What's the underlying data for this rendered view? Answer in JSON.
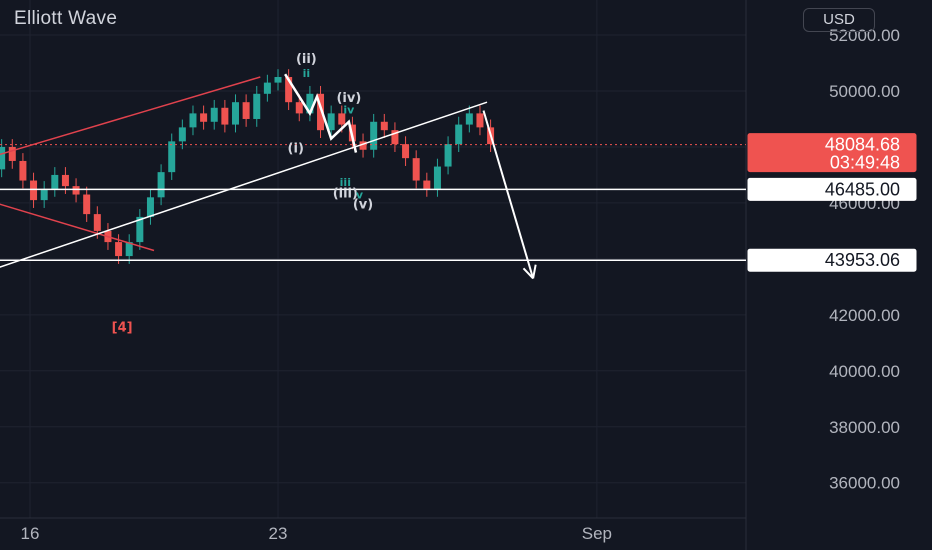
{
  "chart_title": "Elliott Wave",
  "currency": "USD",
  "chart_data": {
    "type": "candlestick",
    "y_axis": {
      "range": [
        35000,
        53500
      ],
      "ticks": [
        52000,
        50000,
        46000,
        42000,
        40000,
        38000,
        36000
      ],
      "tick_labels": [
        "52000.00",
        "50000.00",
        "46000.00",
        "42000.00",
        "40000.00",
        "38000.00",
        "36000.00"
      ]
    },
    "x_axis": {
      "ticks": [
        {
          "label": "16",
          "day": 16
        },
        {
          "label": "23",
          "day": 23
        },
        {
          "label": "Sep",
          "day": 32
        }
      ]
    },
    "current_price": {
      "value": 48084.68,
      "label": "48084.68",
      "countdown": "03:49:48"
    },
    "horizontal_levels": [
      {
        "value": 46485.0,
        "label": "46485.00"
      },
      {
        "value": 43953.06,
        "label": "43953.06"
      }
    ],
    "series": [
      {
        "name": "close",
        "x": [
          14.1,
          14.3,
          14.6,
          14.9,
          15.2,
          15.5,
          15.8,
          16.1,
          16.4,
          16.7,
          17.0,
          17.3,
          17.6,
          17.9,
          18.2,
          18.5,
          18.8,
          19.1,
          19.4,
          19.7,
          20.0,
          20.3,
          20.6,
          20.9,
          21.2,
          21.5,
          21.8,
          22.1,
          22.4,
          22.7,
          23.0,
          23.3,
          23.6,
          23.9,
          24.2,
          24.5,
          24.8,
          25.1,
          25.4,
          25.7,
          26.0,
          26.3,
          26.6,
          26.9,
          27.2,
          27.5,
          27.8,
          28.1,
          28.4,
          28.7,
          29.0
        ],
        "y": [
          46000,
          46300,
          46700,
          47200,
          48000,
          47500,
          46800,
          46100,
          46500,
          47000,
          46600,
          46300,
          45600,
          45000,
          44600,
          44100,
          44600,
          45500,
          46200,
          47100,
          48200,
          48700,
          49200,
          48900,
          49400,
          48800,
          49600,
          49000,
          49900,
          50300,
          50500,
          49600,
          49200,
          49900,
          48600,
          49200,
          48800,
          48200,
          47900,
          48900,
          48600,
          48100,
          47600,
          46800,
          46500,
          47300,
          48100,
          48800,
          49200,
          48700,
          48100
        ]
      }
    ],
    "trendlines": [
      {
        "label": "red_ascending_channel_upper",
        "from": [
          14.0,
          47300
        ],
        "to": [
          22.5,
          50500
        ]
      },
      {
        "label": "red_ascending_channel_lower",
        "from": [
          14.5,
          46200
        ],
        "to": [
          19.5,
          44300
        ]
      },
      {
        "label": "white_rising_trendline",
        "from": [
          13.5,
          43000
        ],
        "to": [
          28.9,
          49600
        ]
      },
      {
        "label": "white_wave_path",
        "points": [
          [
            23.2,
            50600
          ],
          [
            23.9,
            49200
          ],
          [
            24.1,
            49800
          ],
          [
            24.5,
            48300
          ],
          [
            25.0,
            48900
          ],
          [
            25.2,
            47800
          ]
        ]
      },
      {
        "label": "white_projection_arrow",
        "from": [
          28.8,
          49300
        ],
        "to": [
          30.2,
          43300
        ]
      }
    ],
    "annotations": [
      {
        "text": "(ii)",
        "at": [
          23.8,
          51000
        ]
      },
      {
        "text": "ii",
        "at": [
          23.8,
          50500
        ]
      },
      {
        "text": "(iv)",
        "at": [
          25.0,
          49600
        ]
      },
      {
        "text": "iv",
        "at": [
          25.0,
          49200
        ]
      },
      {
        "text": "(i)",
        "at": [
          23.5,
          47800
        ]
      },
      {
        "text": "(iii)",
        "at": [
          24.9,
          46200
        ]
      },
      {
        "text": "iii",
        "at": [
          24.9,
          46600
        ]
      },
      {
        "text": "v",
        "at": [
          25.3,
          46150
        ]
      },
      {
        "text": "(v)",
        "at": [
          25.4,
          45800
        ]
      },
      {
        "text": "[4]",
        "at": [
          18.6,
          41400
        ]
      }
    ]
  }
}
